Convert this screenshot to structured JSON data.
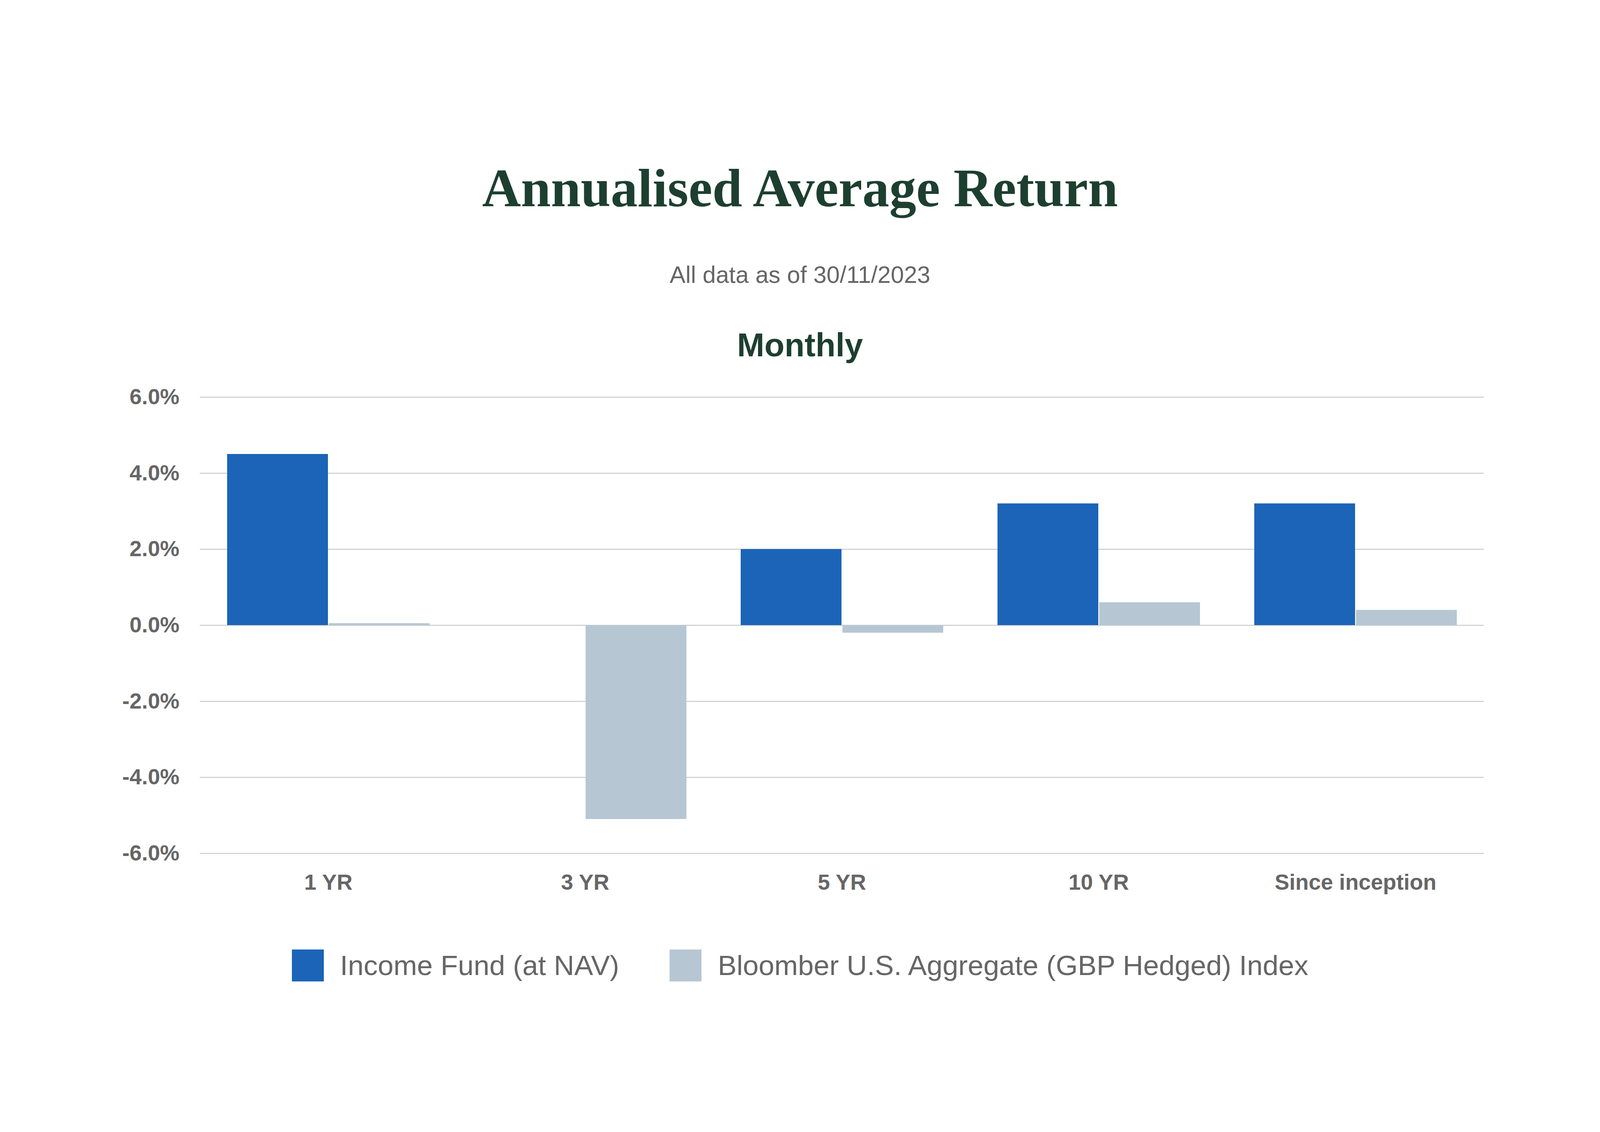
{
  "chart_data": {
    "type": "bar",
    "title": "Annualised Average Return",
    "subtitle": "All data as of 30/11/2023",
    "panel_title": "Monthly",
    "categories": [
      "1 YR",
      "3 YR",
      "5 YR",
      "10 YR",
      "Since inception"
    ],
    "series": [
      {
        "name": "Income Fund (at NAV)",
        "color": "#1b64b8",
        "values": [
          4.5,
          0,
          2.0,
          3.2,
          3.2
        ]
      },
      {
        "name": "Bloomber U.S. Aggregate (GBP Hedged) Index",
        "color": "#b6c7d3",
        "values": [
          0.05,
          -5.1,
          -0.2,
          0.6,
          0.4
        ]
      }
    ],
    "ylim": [
      -6,
      6
    ],
    "yticks": [
      {
        "value": -6,
        "label": "-6.0%"
      },
      {
        "value": -4,
        "label": "-4.0%"
      },
      {
        "value": -2,
        "label": "-2.0%"
      },
      {
        "value": 0,
        "label": "0.0%"
      },
      {
        "value": 2,
        "label": "2.0%"
      },
      {
        "value": 4,
        "label": "4.0%"
      },
      {
        "value": 6,
        "label": "6.0%"
      }
    ],
    "grid": true,
    "legend": "bottom"
  }
}
